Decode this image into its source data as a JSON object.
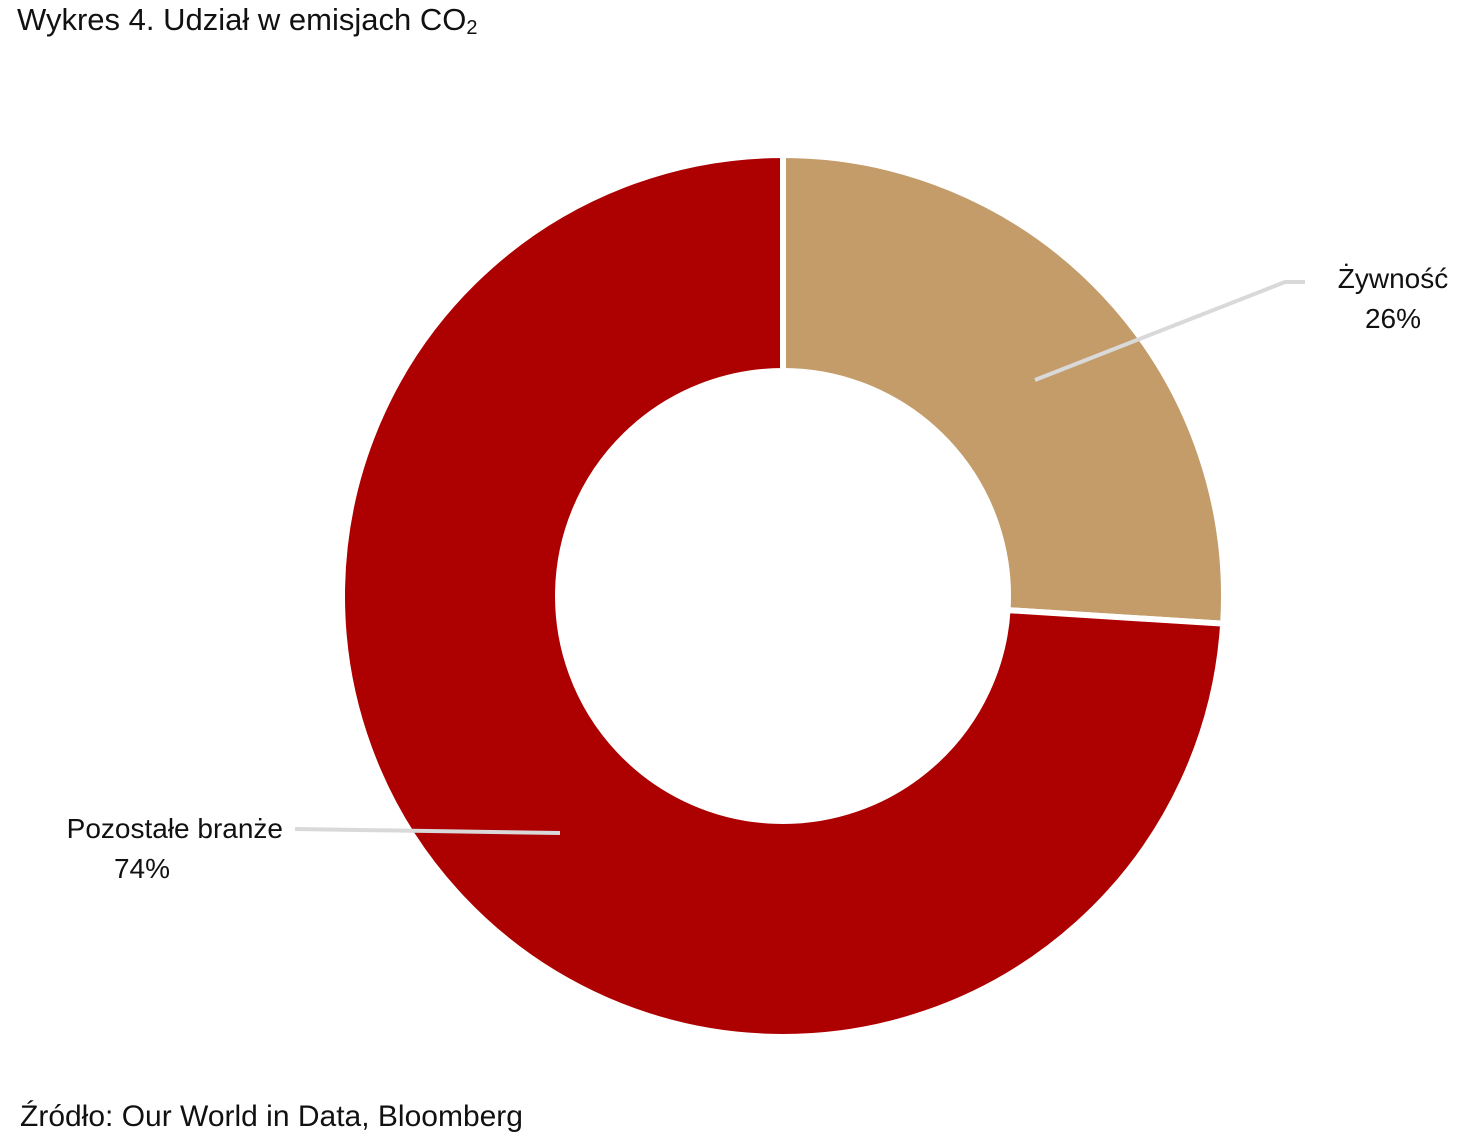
{
  "chart_data": {
    "type": "pie",
    "variant": "donut",
    "title_main": "Wykres 4. Udział w emisjach CO",
    "title_subscript": "2",
    "source": "Źródło: Our World in Data, Bloomberg",
    "slices": [
      {
        "label": "Żywność",
        "value": 26,
        "value_label": "26%",
        "color": "#C39C6A"
      },
      {
        "label": "Pozostałe branże",
        "value": 74,
        "value_label": "74%",
        "color": "#AD0000"
      }
    ],
    "leader_line_color": "#D9D9D9"
  }
}
